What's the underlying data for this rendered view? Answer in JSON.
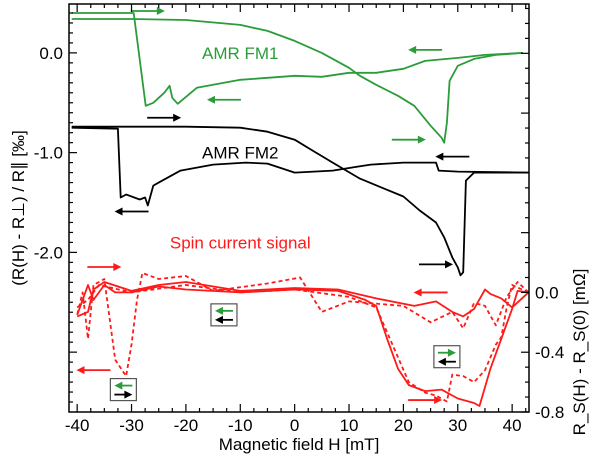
{
  "chart_data": {
    "type": "line",
    "xlabel": "Magnetic field H [mT]",
    "ylabel_left": "(R(H) - R⊥) / R∥ [‰]",
    "ylabel_right": "R_S(H) - R_S(0) [mΩ]",
    "xlim": [
      -41.5,
      43.1
    ],
    "ylim_left": [
      -3.6,
      0.49
    ],
    "ylim_right": [
      -0.8,
      1.93
    ],
    "x_ticks": [
      -40,
      -30,
      -20,
      -10,
      0,
      10,
      20,
      30,
      40
    ],
    "y_left_ticks": [
      "0.0",
      "-1.0",
      "-2.0"
    ],
    "y_left_tick_values": [
      0,
      -1,
      -2
    ],
    "y_right_ticks": [
      "0.0",
      "-0.4",
      "-0.8"
    ],
    "y_right_tick_values": [
      0,
      -0.4,
      -0.8
    ],
    "grid": false,
    "colors": {
      "fm1": "#2a9d3a",
      "fm2": "#000000",
      "spin": "#ff1a1a"
    },
    "labels": [
      {
        "text": "AMR FM1",
        "color": "#2a9d3a",
        "x": -10,
        "y": 0.0,
        "axis": "left"
      },
      {
        "text": "AMR FM2",
        "color": "#000000",
        "x": -10,
        "y": -1.0,
        "axis": "left"
      },
      {
        "text": "Spin current signal",
        "color": "#ff1a1a",
        "x": -10,
        "y": -1.9,
        "axis": "left"
      }
    ],
    "series": [
      {
        "id": "fm1-up",
        "axis": "left",
        "color": "#2a9d3a",
        "style": "solid",
        "x": [
          -41,
          -30,
          -20,
          -10,
          -5,
          0,
          5,
          10,
          12,
          15,
          19,
          22,
          25,
          27,
          27.5,
          28,
          28.5,
          30,
          33,
          37,
          42
        ],
        "y": [
          0.34,
          0.34,
          0.33,
          0.28,
          0.22,
          0.12,
          0.0,
          -0.15,
          -0.23,
          -0.32,
          -0.43,
          -0.53,
          -0.73,
          -0.85,
          -0.9,
          -0.7,
          -0.28,
          -0.13,
          -0.06,
          -0.02,
          0.0
        ]
      },
      {
        "id": "fm1-down",
        "axis": "left",
        "color": "#2a9d3a",
        "style": "solid",
        "x": [
          42,
          35,
          30,
          24,
          20,
          15,
          10,
          5,
          0,
          -10,
          -18,
          -21.5,
          -22.5,
          -23,
          -24,
          -26,
          -27.4,
          -29.6,
          -32,
          -41
        ],
        "y": [
          0.0,
          -0.02,
          -0.05,
          -0.08,
          -0.16,
          -0.2,
          -0.2,
          -0.24,
          -0.23,
          -0.27,
          -0.35,
          -0.51,
          -0.45,
          -0.33,
          -0.4,
          -0.5,
          -0.53,
          0.4,
          0.4,
          0.4
        ]
      },
      {
        "id": "fm2-up",
        "axis": "left",
        "color": "#000000",
        "style": "solid",
        "x": [
          -41,
          -30,
          -20,
          -10,
          -5,
          0,
          3,
          7,
          12,
          16,
          20,
          23,
          26,
          27.5,
          29,
          30,
          30.5,
          31,
          31.5,
          33,
          36,
          43
        ],
        "y": [
          -0.74,
          -0.74,
          -0.74,
          -0.75,
          -0.79,
          -0.87,
          -0.97,
          -1.1,
          -1.26,
          -1.35,
          -1.44,
          -1.58,
          -1.7,
          -1.85,
          -2.05,
          -2.15,
          -2.23,
          -2.2,
          -1.28,
          -1.2,
          -1.2,
          -1.2
        ]
      },
      {
        "id": "fm2-down",
        "axis": "left",
        "color": "#000000",
        "style": "solid",
        "x": [
          43,
          30,
          26.5,
          26,
          20,
          14,
          11.6,
          7,
          0,
          -5,
          -9,
          -15,
          -21,
          -25,
          -26,
          -27,
          -27.5,
          -28.5,
          -31,
          -32,
          -32.5,
          -41
        ],
        "y": [
          -1.2,
          -1.19,
          -1.18,
          -1.1,
          -1.1,
          -1.12,
          -1.14,
          -1.18,
          -1.2,
          -1.11,
          -1.1,
          -1.12,
          -1.18,
          -1.3,
          -1.33,
          -1.53,
          -1.45,
          -1.47,
          -1.42,
          -1.45,
          -0.76,
          -0.75
        ]
      },
      {
        "id": "spin-up-solid",
        "axis": "right",
        "color": "#ff1a1a",
        "style": "solid",
        "x": [
          -40,
          -38,
          -37,
          -35,
          -33,
          -30,
          -25,
          -20,
          -10,
          0,
          8,
          13,
          15,
          17,
          19,
          21,
          24,
          27,
          30,
          33,
          34,
          36,
          38,
          40,
          41,
          43
        ],
        "y": [
          -0.15,
          0.05,
          -0.05,
          0.05,
          0.0,
          0.0,
          0.04,
          0.02,
          0.0,
          0.02,
          0.01,
          -0.05,
          -0.09,
          -0.31,
          -0.51,
          -0.62,
          -0.66,
          -0.65,
          -0.71,
          -0.74,
          -0.76,
          -0.51,
          -0.31,
          -0.11,
          0.01,
          0.0
        ]
      },
      {
        "id": "spin-down-solid",
        "axis": "right",
        "color": "#ff1a1a",
        "style": "solid",
        "x": [
          43,
          40,
          38,
          36,
          35,
          33,
          31,
          29,
          26,
          22,
          15,
          8,
          0,
          -10,
          -20,
          -25,
          -30,
          -35,
          -37,
          -38,
          -40
        ],
        "y": [
          0.0,
          -0.1,
          -0.04,
          -0.01,
          0.02,
          -0.11,
          -0.16,
          -0.13,
          -0.06,
          -0.09,
          -0.04,
          0.02,
          0.03,
          0.01,
          0.07,
          0.05,
          0.01,
          0.07,
          0.02,
          -0.13,
          -0.16
        ]
      },
      {
        "id": "spin-up-dashed",
        "axis": "right",
        "color": "#ff1a1a",
        "style": "dashed",
        "x": [
          -40,
          -38,
          -36,
          -30,
          -20,
          -10,
          0,
          10,
          15,
          18,
          21,
          24,
          26,
          28,
          29,
          31,
          33,
          35,
          37,
          38,
          39,
          40,
          43
        ],
        "y": [
          -0.1,
          -0.05,
          0.05,
          0.0,
          0.05,
          0.0,
          0.02,
          -0.03,
          -0.1,
          -0.35,
          -0.6,
          -0.67,
          -0.69,
          -0.73,
          -0.55,
          -0.56,
          -0.6,
          -0.52,
          -0.35,
          -0.3,
          -0.1,
          0.05,
          0.0
        ]
      },
      {
        "id": "spin-down-dashed",
        "axis": "right",
        "color": "#ff1a1a",
        "style": "dashed",
        "x": [
          43,
          41,
          39,
          37,
          35,
          33,
          31,
          29,
          25,
          20,
          10,
          5,
          1,
          -5,
          -15,
          -20,
          -25,
          -28,
          -29,
          -30,
          -31,
          -33,
          -35,
          -37,
          -38,
          -39,
          -40
        ],
        "y": [
          0.0,
          0.07,
          -0.03,
          -0.22,
          -0.09,
          -0.07,
          -0.24,
          -0.13,
          -0.2,
          -0.09,
          -0.06,
          -0.13,
          0.1,
          0.06,
          0.01,
          0.11,
          0.09,
          0.13,
          -0.05,
          -0.35,
          -0.56,
          -0.45,
          0.09,
          0.05,
          -0.31,
          0.0,
          -0.15
        ]
      }
    ],
    "arrows": [
      {
        "color": "#2a9d3a",
        "dir": "right",
        "x": -27,
        "y": 0.42,
        "axis": "left"
      },
      {
        "color": "#2a9d3a",
        "dir": "left",
        "x": -13,
        "y": -0.47,
        "axis": "left"
      },
      {
        "color": "#2a9d3a",
        "dir": "left",
        "x": 24,
        "y": 0.03,
        "axis": "left"
      },
      {
        "color": "#2a9d3a",
        "dir": "right",
        "x": 21,
        "y": -0.87,
        "axis": "left"
      },
      {
        "color": "#000000",
        "dir": "right",
        "x": -24,
        "y": -0.65,
        "axis": "left"
      },
      {
        "color": "#000000",
        "dir": "left",
        "x": -30,
        "y": -1.59,
        "axis": "left"
      },
      {
        "color": "#000000",
        "dir": "left",
        "x": 29,
        "y": -1.04,
        "axis": "left"
      },
      {
        "color": "#000000",
        "dir": "right",
        "x": 26,
        "y": -2.12,
        "axis": "left"
      },
      {
        "color": "#ff1a1a",
        "dir": "right",
        "x": -35,
        "y": 0.17,
        "axis": "right"
      },
      {
        "color": "#ff1a1a",
        "dir": "left",
        "x": -37,
        "y": -0.52,
        "axis": "right"
      },
      {
        "color": "#ff1a1a",
        "dir": "left",
        "x": 25,
        "y": 0.0,
        "axis": "right"
      },
      {
        "color": "#ff1a1a",
        "dir": "right",
        "x": 24,
        "y": -0.72,
        "axis": "right"
      }
    ],
    "magnetization_boxes": [
      {
        "x": -13,
        "y": -0.15,
        "fm1": "left",
        "fm2": "left"
      },
      {
        "x": -31.5,
        "y": -0.65,
        "fm1": "left",
        "fm2": "right"
      },
      {
        "x": 28,
        "y": -0.43,
        "fm1": "right",
        "fm2": "left"
      }
    ]
  }
}
